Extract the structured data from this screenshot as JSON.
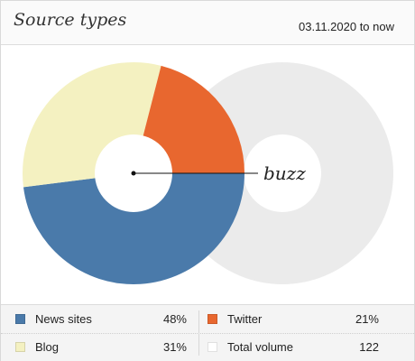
{
  "header": {
    "title": "Source types",
    "date_range": "03.11.2020 to now"
  },
  "chart_data": {
    "type": "pie",
    "slices": [
      {
        "label": "News sites",
        "value": 48,
        "color": "#4a7aaa"
      },
      {
        "label": "Blog",
        "value": 31,
        "color": "#f4f1c1"
      },
      {
        "label": "Twitter",
        "value": 21,
        "color": "#e8672f"
      }
    ],
    "background_ring_label": "Total volume",
    "background_ring_color": "#ebebeb",
    "center_annotation": "buzz",
    "style": "donut"
  },
  "legend": {
    "items": [
      {
        "label": "News sites",
        "value": "48%",
        "color": "#4a7aaa"
      },
      {
        "label": "Twitter",
        "value": "21%",
        "color": "#e8672f"
      },
      {
        "label": "Blog",
        "value": "31%",
        "color": "#f4f1c1"
      },
      {
        "label": "Total volume",
        "value": "122",
        "color": "#ffffff"
      }
    ]
  }
}
